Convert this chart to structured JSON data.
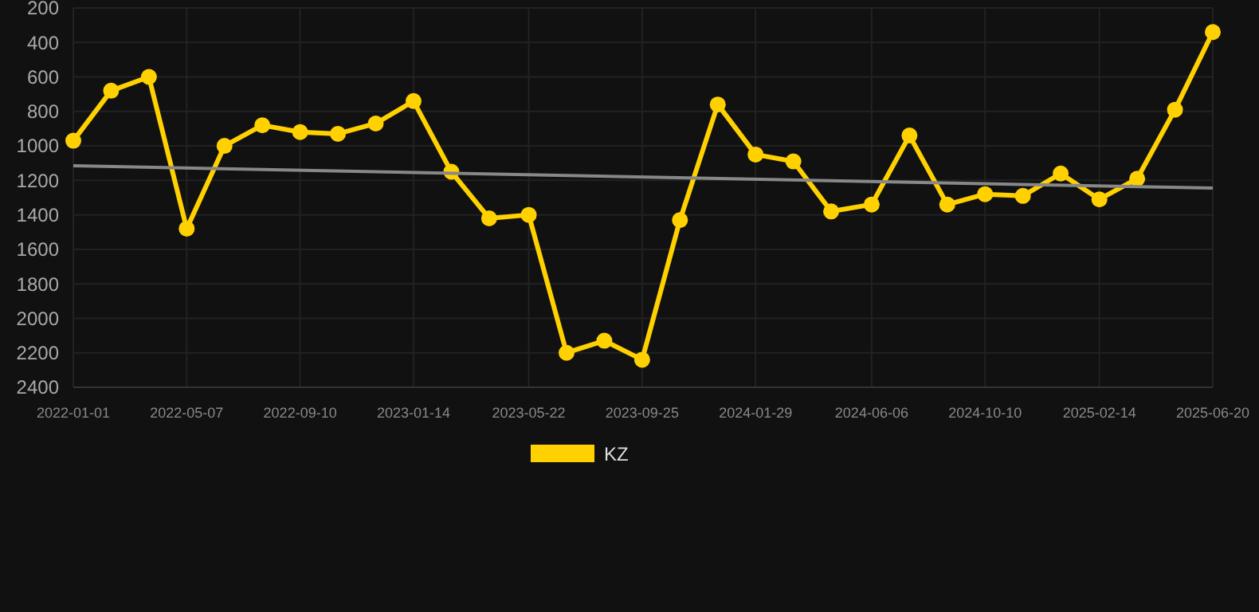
{
  "chart_data": {
    "type": "line",
    "x": [
      "2022-01-01",
      "2022-02-12",
      "2022-03-26",
      "2022-05-07",
      "2022-06-18",
      "2022-07-30",
      "2022-09-10",
      "2022-10-22",
      "2022-12-03",
      "2023-01-14",
      "2023-02-25",
      "2023-04-08",
      "2023-05-22",
      "2023-07-03",
      "2023-08-14",
      "2023-09-25",
      "2023-11-06",
      "2023-12-18",
      "2024-01-29",
      "2024-03-11",
      "2024-04-22",
      "2024-06-06",
      "2024-07-18",
      "2024-08-29",
      "2024-10-10",
      "2024-11-21",
      "2025-01-02",
      "2025-02-14",
      "2025-03-28",
      "2025-05-09",
      "2025-06-20"
    ],
    "series": [
      {
        "name": "KZ",
        "color": "#ffd100",
        "marker": "circle",
        "values": [
          970,
          680,
          600,
          1480,
          1000,
          880,
          920,
          930,
          870,
          740,
          1150,
          1420,
          1400,
          2200,
          2130,
          2240,
          1430,
          760,
          1050,
          1090,
          1380,
          1340,
          940,
          1340,
          1280,
          1290,
          1160,
          1310,
          1190,
          790,
          340
        ]
      },
      {
        "type": "line",
        "color": "#888888",
        "marker": "none",
        "x": [
          "2022-01-01",
          "2025-06-20"
        ],
        "values": [
          1115,
          1245
        ]
      }
    ],
    "ylim": [
      2400,
      200
    ],
    "yticks": [
      200,
      400,
      600,
      800,
      1000,
      1200,
      1400,
      1600,
      1800,
      2000,
      2200,
      2400
    ],
    "xlim": [
      "2022-01-01",
      "2025-06-20"
    ],
    "xticks": [
      "2022-01-01",
      "2022-05-07",
      "2022-09-10",
      "2023-01-14",
      "2023-05-22",
      "2023-09-25",
      "2024-01-29",
      "2024-06-06",
      "2024-10-10",
      "2025-02-14",
      "2025-06-20"
    ],
    "grid": true,
    "legend": "bottom"
  }
}
